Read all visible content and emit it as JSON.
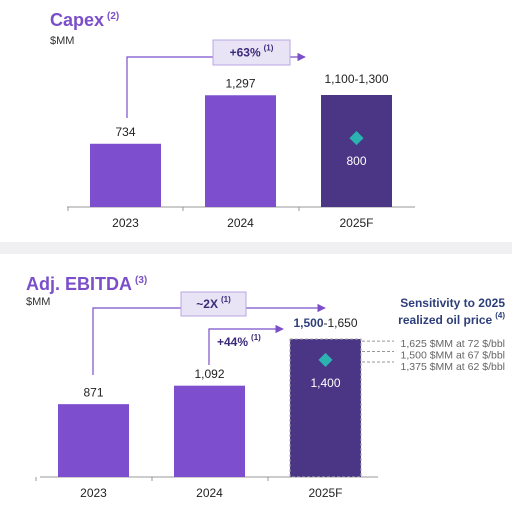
{
  "chart_data": [
    {
      "type": "bar",
      "title": "Capex",
      "title_note": "(2)",
      "subtitle": "$MM",
      "categories": [
        "2023",
        "2024",
        "2025F"
      ],
      "values": [
        734,
        1297,
        null
      ],
      "value_labels": [
        "734",
        "1,297",
        null
      ],
      "color": "#7d4fcf",
      "forecast_color": "#4b3585",
      "forecast": {
        "range": [
          1100,
          1300
        ],
        "label": "1,100-1,300",
        "marker": 800,
        "marker_color": "#2ab3b0"
      },
      "annotations": [
        {
          "text": "+63%",
          "note": "(1)"
        }
      ]
    },
    {
      "type": "bar",
      "title": "Adj. EBITDA",
      "title_note": "(3)",
      "subtitle": "$MM",
      "categories": [
        "2023",
        "2024",
        "2025F"
      ],
      "values": [
        871,
        1092,
        null
      ],
      "value_labels": [
        "871",
        "1,092",
        null
      ],
      "color": "#7d4fcf",
      "forecast_color": "#4b3585",
      "forecast": {
        "range": [
          1500,
          1650
        ],
        "label_bold": "1,500",
        "label_rest": "-1,650",
        "marker": 1400,
        "marker_label": "1,400",
        "marker_color": "#2ab3b0"
      },
      "annotations": [
        {
          "text": "~2X",
          "note": "(1)"
        },
        {
          "text": "+44%",
          "note": "(1)"
        }
      ],
      "sensitivity": {
        "title": [
          "Sensitivity to 2025",
          "realized oil price"
        ],
        "note": "(4)",
        "items": [
          {
            "value": 1625,
            "label": "1,625 $MM at 72 $/bbl"
          },
          {
            "value": 1500,
            "label": "1,500 $MM at 67 $/bbl"
          },
          {
            "value": 1375,
            "label": "1,375 $MM at 62 $/bbl"
          }
        ]
      }
    }
  ]
}
